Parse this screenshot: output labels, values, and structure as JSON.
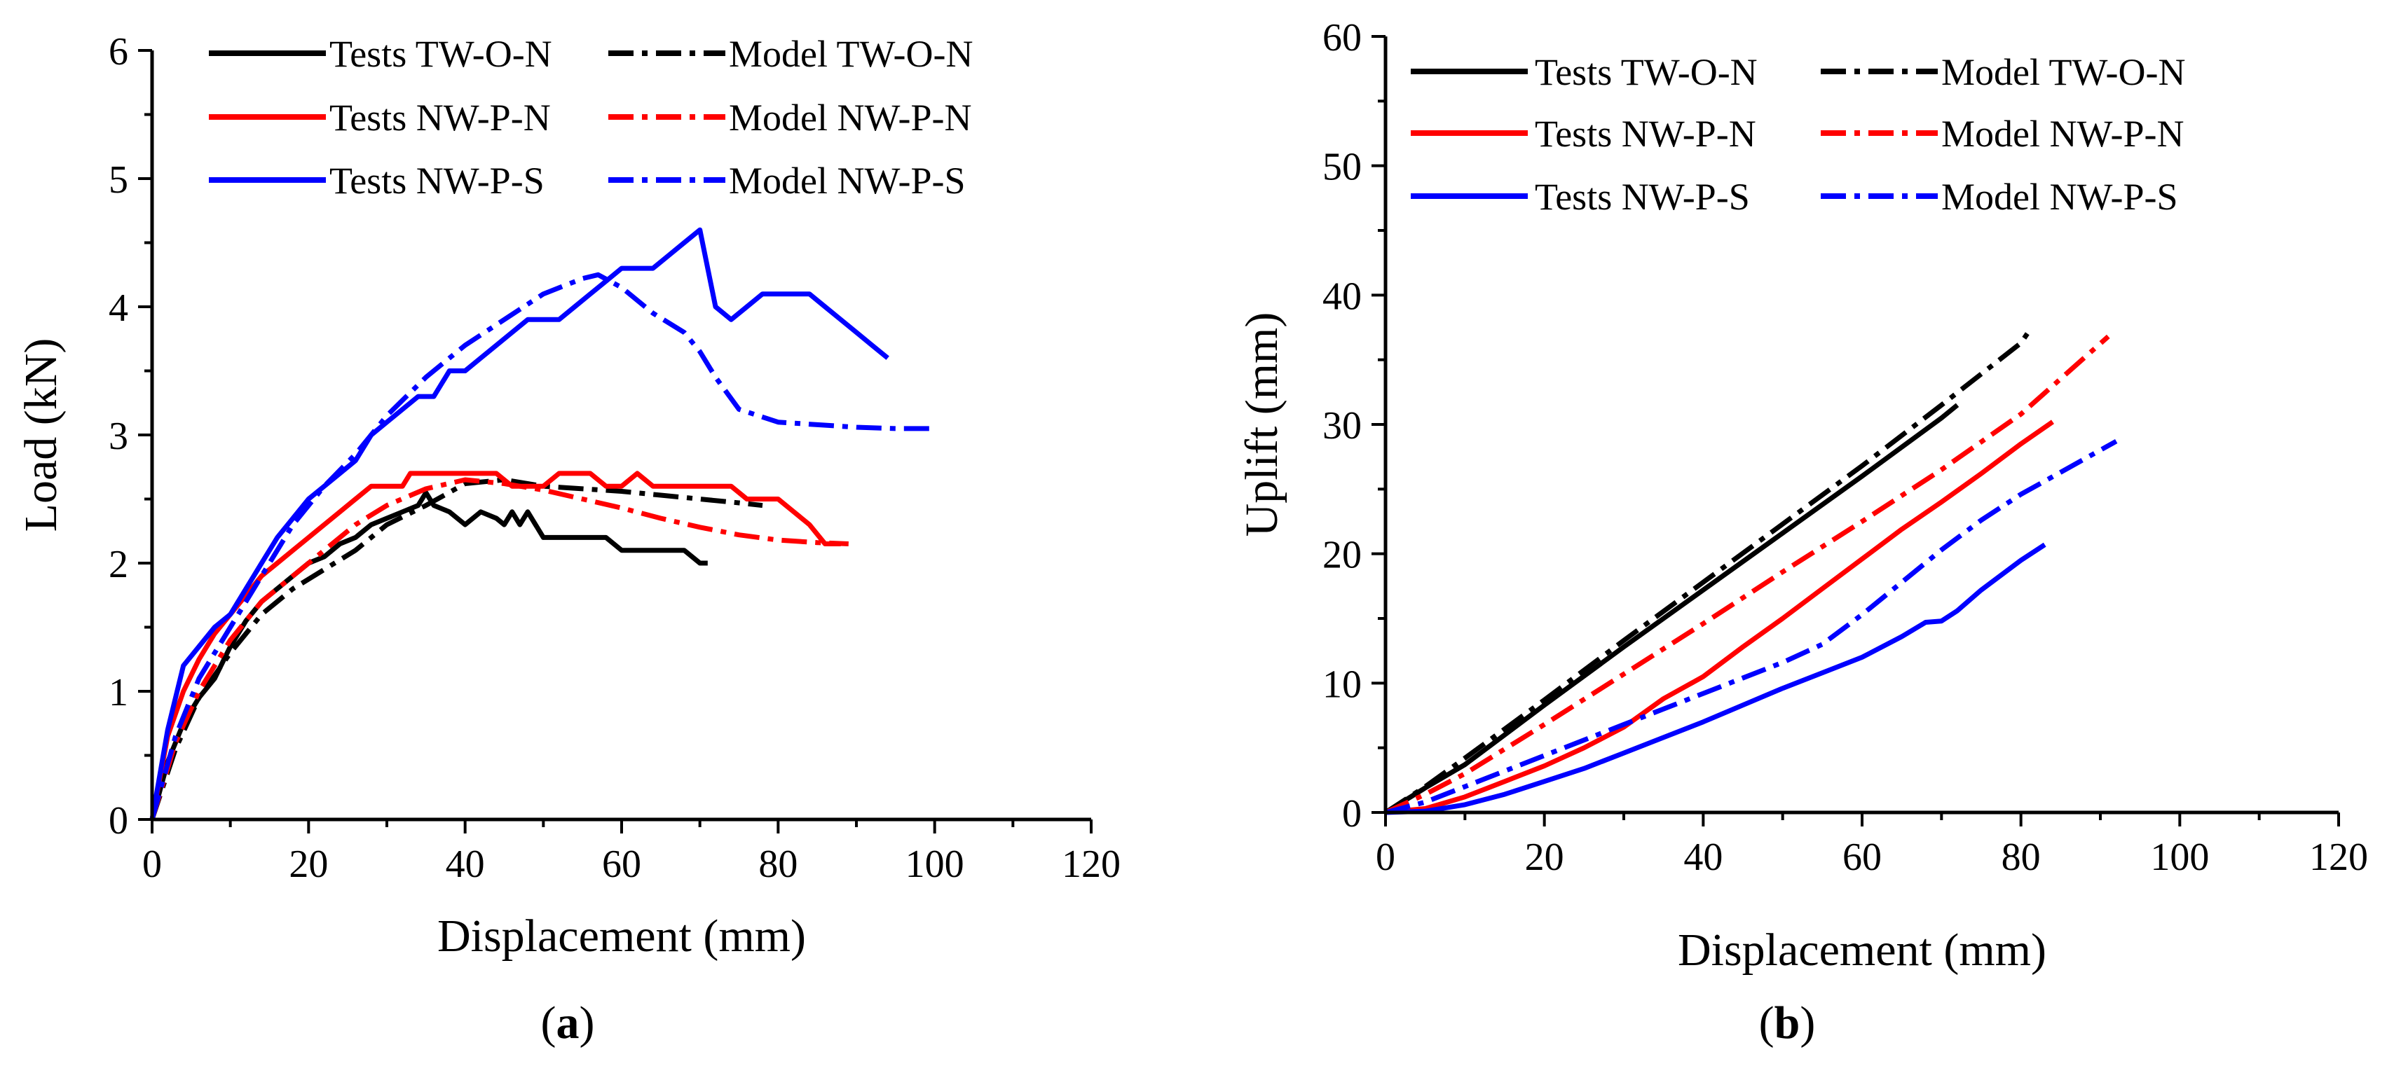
{
  "chart_data": [
    {
      "type": "line",
      "panel": "a",
      "caption": "a",
      "xlabel": "Displacement (mm)",
      "ylabel": "Load (kN)",
      "xlim": [
        0,
        120
      ],
      "ylim": [
        0,
        6
      ],
      "xticks": [
        0,
        20,
        40,
        60,
        80,
        100,
        120
      ],
      "yticks": [
        0,
        1,
        2,
        3,
        4,
        5,
        6
      ],
      "grid": false,
      "legend_position": "top",
      "series": [
        {
          "name": "Tests TW-O-N",
          "color": "#000000",
          "style": "solid",
          "x": [
            0,
            2,
            4,
            6,
            8,
            10,
            12,
            14,
            16,
            18,
            20,
            22,
            24,
            26,
            28,
            30,
            32,
            34,
            35,
            36,
            38,
            40,
            42,
            44,
            45,
            46,
            47,
            48,
            50,
            52,
            54,
            56,
            58,
            60,
            62,
            64,
            66,
            68,
            70,
            71
          ],
          "y": [
            0,
            0.45,
            0.75,
            0.95,
            1.1,
            1.35,
            1.55,
            1.7,
            1.8,
            1.9,
            2.0,
            2.05,
            2.15,
            2.2,
            2.3,
            2.35,
            2.4,
            2.45,
            2.55,
            2.45,
            2.4,
            2.3,
            2.4,
            2.35,
            2.3,
            2.4,
            2.3,
            2.4,
            2.2,
            2.2,
            2.2,
            2.2,
            2.2,
            2.1,
            2.1,
            2.1,
            2.1,
            2.1,
            2.0,
            2.0
          ]
        },
        {
          "name": "Model TW-O-N",
          "color": "#000000",
          "style": "dashdot",
          "x": [
            0,
            3,
            6,
            10,
            14,
            18,
            22,
            26,
            30,
            35,
            40,
            45,
            50,
            55,
            60,
            65,
            70,
            75,
            78
          ],
          "y": [
            0,
            0.55,
            0.95,
            1.3,
            1.6,
            1.8,
            1.95,
            2.1,
            2.3,
            2.45,
            2.62,
            2.65,
            2.6,
            2.58,
            2.56,
            2.53,
            2.5,
            2.47,
            2.45
          ]
        },
        {
          "name": "Tests NW-P-N",
          "color": "#ff0000",
          "style": "solid",
          "x": [
            0,
            2,
            4,
            6,
            8,
            10,
            12,
            14,
            16,
            18,
            20,
            22,
            24,
            26,
            28,
            30,
            32,
            33,
            36,
            40,
            44,
            46,
            48,
            50,
            52,
            54,
            56,
            58,
            60,
            62,
            63,
            64,
            66,
            68,
            70,
            72,
            74,
            76,
            78,
            80,
            82,
            84,
            86,
            88
          ],
          "y": [
            0,
            0.65,
            1.0,
            1.25,
            1.45,
            1.6,
            1.75,
            1.9,
            2.0,
            2.1,
            2.2,
            2.3,
            2.4,
            2.5,
            2.6,
            2.6,
            2.6,
            2.7,
            2.7,
            2.7,
            2.7,
            2.6,
            2.6,
            2.6,
            2.7,
            2.7,
            2.7,
            2.6,
            2.6,
            2.7,
            2.65,
            2.6,
            2.6,
            2.6,
            2.6,
            2.6,
            2.6,
            2.5,
            2.5,
            2.5,
            2.4,
            2.3,
            2.15,
            2.15
          ]
        },
        {
          "name": "Model NW-P-N",
          "color": "#ff0000",
          "style": "dashdot",
          "x": [
            0,
            3,
            6,
            10,
            14,
            18,
            22,
            26,
            30,
            35,
            40,
            45,
            50,
            55,
            60,
            65,
            70,
            75,
            80,
            85,
            89
          ],
          "y": [
            0,
            0.6,
            1.0,
            1.4,
            1.7,
            1.9,
            2.1,
            2.3,
            2.45,
            2.58,
            2.65,
            2.62,
            2.57,
            2.5,
            2.43,
            2.35,
            2.28,
            2.22,
            2.18,
            2.16,
            2.15
          ]
        },
        {
          "name": "Tests NW-P-S",
          "color": "#0000ff",
          "style": "solid",
          "x": [
            0,
            2,
            4,
            6,
            8,
            10,
            12,
            14,
            16,
            18,
            20,
            22,
            24,
            26,
            28,
            30,
            32,
            34,
            36,
            38,
            40,
            42,
            44,
            46,
            48,
            50,
            52,
            54,
            56,
            58,
            60,
            62,
            64,
            66,
            68,
            70,
            72,
            74,
            76,
            78,
            80,
            82,
            84,
            86,
            88,
            90,
            92,
            94
          ],
          "y": [
            0,
            0.7,
            1.2,
            1.35,
            1.5,
            1.6,
            1.8,
            2.0,
            2.2,
            2.35,
            2.5,
            2.6,
            2.7,
            2.8,
            3.0,
            3.1,
            3.2,
            3.3,
            3.3,
            3.5,
            3.5,
            3.6,
            3.7,
            3.8,
            3.9,
            3.9,
            3.9,
            4.0,
            4.1,
            4.2,
            4.3,
            4.3,
            4.3,
            4.4,
            4.5,
            4.6,
            4.0,
            3.9,
            4.0,
            4.1,
            4.1,
            4.1,
            4.1,
            4.0,
            3.9,
            3.8,
            3.7,
            3.6
          ]
        },
        {
          "name": "Model NW-P-S",
          "color": "#0000ff",
          "style": "dashdot",
          "x": [
            0,
            3,
            6,
            10,
            14,
            18,
            22,
            26,
            30,
            35,
            40,
            45,
            50,
            55,
            57,
            60,
            64,
            68,
            70,
            72,
            75,
            80,
            85,
            90,
            95,
            100
          ],
          "y": [
            0,
            0.65,
            1.1,
            1.5,
            1.9,
            2.3,
            2.6,
            2.85,
            3.15,
            3.45,
            3.7,
            3.9,
            4.1,
            4.22,
            4.25,
            4.15,
            3.95,
            3.8,
            3.65,
            3.45,
            3.2,
            3.1,
            3.08,
            3.06,
            3.05,
            3.05
          ]
        }
      ]
    },
    {
      "type": "line",
      "panel": "b",
      "caption": "b",
      "xlabel": "Displacement (mm)",
      "ylabel": "Uplift (mm)",
      "xlim": [
        0,
        120
      ],
      "ylim": [
        0,
        60
      ],
      "xticks": [
        0,
        20,
        40,
        60,
        80,
        100,
        120
      ],
      "yticks": [
        0,
        10,
        20,
        30,
        40,
        50,
        60
      ],
      "grid": false,
      "legend_position": "top",
      "series": [
        {
          "name": "Tests TW-O-N",
          "color": "#000000",
          "style": "solid",
          "x": [
            0,
            5,
            10,
            20,
            30,
            40,
            50,
            60,
            70,
            72
          ],
          "y": [
            0,
            1.9,
            3.7,
            8.3,
            12.8,
            17.2,
            21.6,
            26.0,
            30.5,
            31.5
          ]
        },
        {
          "name": "Model TW-O-N",
          "color": "#000000",
          "style": "dashdot",
          "x": [
            0,
            5,
            10,
            20,
            30,
            40,
            50,
            60,
            70,
            80,
            81
          ],
          "y": [
            0,
            2.0,
            4.2,
            8.7,
            13.3,
            17.8,
            22.3,
            26.8,
            31.5,
            36.3,
            37.2
          ]
        },
        {
          "name": "Tests NW-P-N",
          "color": "#ff0000",
          "style": "solid",
          "x": [
            0,
            5,
            10,
            15,
            20,
            25,
            30,
            35,
            40,
            45,
            50,
            55,
            60,
            65,
            70,
            75,
            80,
            84
          ],
          "y": [
            0,
            0.3,
            1.2,
            2.4,
            3.6,
            5.0,
            6.6,
            8.8,
            10.5,
            12.8,
            15.0,
            17.3,
            19.6,
            21.9,
            24.0,
            26.2,
            28.5,
            30.2
          ]
        },
        {
          "name": "Model NW-P-N",
          "color": "#ff0000",
          "style": "dashdot",
          "x": [
            0,
            5,
            10,
            20,
            30,
            40,
            50,
            60,
            70,
            80,
            91
          ],
          "y": [
            0,
            1.4,
            3.0,
            6.8,
            10.7,
            14.6,
            18.6,
            22.5,
            26.5,
            30.8,
            36.8
          ]
        },
        {
          "name": "Tests NW-P-S",
          "color": "#0000ff",
          "style": "solid",
          "x": [
            0,
            5,
            10,
            15,
            20,
            25,
            30,
            35,
            40,
            45,
            50,
            55,
            60,
            65,
            68,
            70,
            72,
            75,
            80,
            83
          ],
          "y": [
            0,
            0.1,
            0.6,
            1.4,
            2.4,
            3.4,
            4.6,
            5.8,
            7.0,
            8.3,
            9.6,
            10.8,
            12.0,
            13.6,
            14.7,
            14.8,
            15.6,
            17.2,
            19.5,
            20.7
          ]
        },
        {
          "name": "Model NW-P-S",
          "color": "#0000ff",
          "style": "dashdot",
          "x": [
            0,
            5,
            10,
            20,
            30,
            40,
            50,
            55,
            60,
            65,
            70,
            75,
            80,
            85,
            92
          ],
          "y": [
            0,
            0.8,
            2.0,
            4.4,
            6.8,
            9.2,
            11.6,
            13.0,
            15.3,
            17.8,
            20.3,
            22.6,
            24.6,
            26.3,
            28.7
          ]
        }
      ]
    }
  ]
}
